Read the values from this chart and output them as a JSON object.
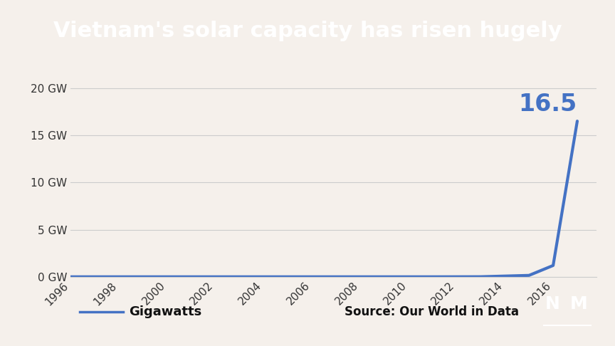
{
  "title": "Vietnam's solar capacity has risen hugely",
  "title_bg": "#111111",
  "title_color": "#ffffff",
  "title_fontsize": 22,
  "bg_color": "#f5f0eb",
  "line_color": "#4472c4",
  "line_width": 3.0,
  "years": [
    1996,
    1997,
    1998,
    1999,
    2000,
    2001,
    2002,
    2003,
    2004,
    2005,
    2006,
    2007,
    2008,
    2009,
    2010,
    2011,
    2012,
    2013,
    2014,
    2015,
    2016,
    2017
  ],
  "values": [
    0.001,
    0.001,
    0.001,
    0.001,
    0.001,
    0.001,
    0.001,
    0.001,
    0.001,
    0.001,
    0.001,
    0.001,
    0.001,
    0.001,
    0.001,
    0.001,
    0.005,
    0.01,
    0.08,
    0.15,
    1.2,
    16.5
  ],
  "xlim": [
    1996,
    2017.8
  ],
  "ylim": [
    0,
    22
  ],
  "yticks": [
    0,
    5,
    10,
    15,
    20
  ],
  "ytick_labels": [
    "0 GW",
    "5 GW",
    "10 GW",
    "15 GW",
    "20 GW"
  ],
  "xticks": [
    1996,
    1998,
    2000,
    2002,
    2004,
    2006,
    2008,
    2010,
    2012,
    2014,
    2016
  ],
  "annotation_value": "16.5",
  "annotation_color": "#4472c4",
  "annotation_fontsize": 24,
  "legend_label": "Gigawatts",
  "source_text": "Source: Our World in Data",
  "grid_color": "#cccccc",
  "tick_fontsize": 11
}
